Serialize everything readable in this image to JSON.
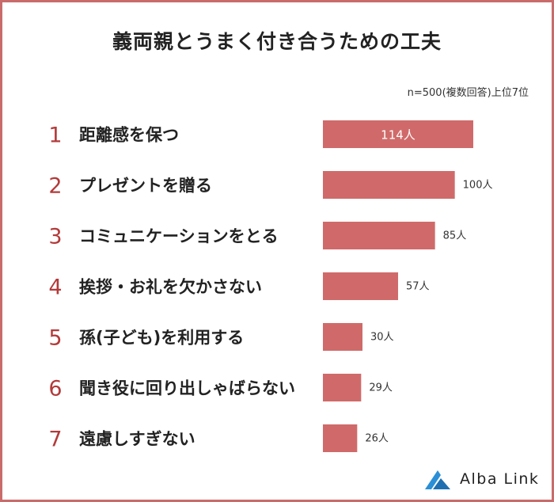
{
  "chart_data": {
    "type": "bar",
    "orientation": "horizontal",
    "title": "義両親とうまく付き合うための工夫",
    "note": "n=500(複数回答)上位7位",
    "ranks": [
      "1",
      "2",
      "3",
      "4",
      "5",
      "6",
      "7"
    ],
    "categories": [
      "距離感を保つ",
      "プレゼントを贈る",
      "コミュニケーションをとる",
      "挨拶・お礼を欠かさない",
      "孫(子ども)を利用する",
      "聞き役に回り出しゃばらない",
      "遠慮しすぎない"
    ],
    "values": [
      114,
      100,
      85,
      57,
      30,
      29,
      26
    ],
    "value_labels": [
      "114人",
      "100人",
      "85人",
      "57人",
      "30人",
      "29人",
      "26人"
    ],
    "xlim": [
      0,
      114
    ],
    "grid": false,
    "bar_color": "#d06a6a",
    "rank_color": "#b33a3a"
  },
  "brand": {
    "name": "Alba Link",
    "icon": "alba-link-logo-icon",
    "color": "#2a8fd6"
  }
}
